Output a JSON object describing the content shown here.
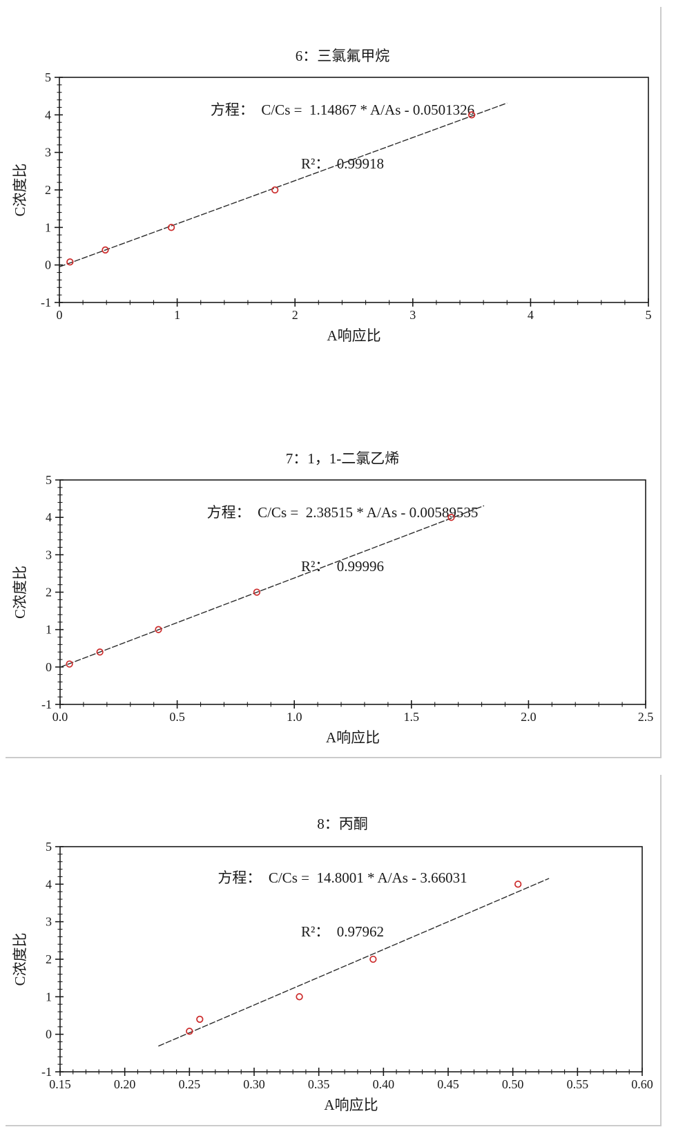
{
  "page": {
    "background": "#ffffff",
    "divider_color": "#cbcbcb"
  },
  "colors": {
    "axis": "#1a1a1a",
    "text": "#1a1a1a",
    "fit_line": "#2b2b2b",
    "point": "#cc2b2b"
  },
  "chart_data": [
    {
      "type": "scatter",
      "title": "6：三氯氟甲烷",
      "equation": "方程：  C/Cs =  1.14867 * A/As - 0.0501326",
      "r_squared_label": "R²：  0.99918",
      "slope": 1.14867,
      "intercept": -0.0501326,
      "r_squared": 0.99918,
      "xlabel": "A响应比",
      "ylabel": "C浓度比",
      "x_min": 0,
      "x_max": 5,
      "y_min": -1,
      "y_max": 5,
      "x_major_ticks": [
        0,
        1,
        2,
        3,
        4,
        5
      ],
      "x_tick_labels": [
        "0",
        "1",
        "2",
        "3",
        "4",
        "5"
      ],
      "x_minor_step": 0.2,
      "y_major_ticks": [
        -1,
        0,
        1,
        2,
        3,
        4,
        5
      ],
      "y_tick_labels": [
        "-1",
        "0",
        "1",
        "2",
        "3",
        "4",
        "5"
      ],
      "y_minor_step": 0.2,
      "grid": false,
      "legend": "none",
      "fit_x_range": [
        0.0,
        3.8
      ],
      "points": [
        [
          0.09,
          0.08
        ],
        [
          0.39,
          0.4
        ],
        [
          0.95,
          1.0
        ],
        [
          1.83,
          2.0
        ],
        [
          3.5,
          4.0
        ]
      ]
    },
    {
      "type": "scatter",
      "title": "7：1，1-二氯乙烯",
      "equation": "方程：  C/Cs =  2.38515 * A/As - 0.00589535",
      "r_squared_label": "R²：  0.99996",
      "slope": 2.38515,
      "intercept": -0.00589535,
      "r_squared": 0.99996,
      "xlabel": "A响应比",
      "ylabel": "C浓度比",
      "x_min": 0,
      "x_max": 2.5,
      "y_min": -1,
      "y_max": 5,
      "x_major_ticks": [
        0,
        0.5,
        1.0,
        1.5,
        2.0,
        2.5
      ],
      "x_tick_labels": [
        "0.0",
        "0.5",
        "1.0",
        "1.5",
        "2.0",
        "2.5"
      ],
      "x_minor_step": 0.1,
      "y_major_ticks": [
        -1,
        0,
        1,
        2,
        3,
        4,
        5
      ],
      "y_tick_labels": [
        "-1",
        "0",
        "1",
        "2",
        "3",
        "4",
        "5"
      ],
      "y_minor_step": 0.2,
      "grid": false,
      "legend": "none",
      "fit_x_range": [
        0.0,
        1.81
      ],
      "points": [
        [
          0.04,
          0.08
        ],
        [
          0.17,
          0.4
        ],
        [
          0.42,
          1.0
        ],
        [
          0.84,
          2.0
        ],
        [
          1.67,
          4.0
        ]
      ]
    },
    {
      "type": "scatter",
      "title": "8：丙酮",
      "equation": "方程：  C/Cs =  14.8001 * A/As - 3.66031",
      "r_squared_label": "R²：  0.97962",
      "slope": 14.8001,
      "intercept": -3.66031,
      "r_squared": 0.97962,
      "xlabel": "A响应比",
      "ylabel": "C浓度比",
      "x_min": 0.15,
      "x_max": 0.6,
      "y_min": -1,
      "y_max": 5,
      "x_major_ticks": [
        0.15,
        0.2,
        0.25,
        0.3,
        0.35,
        0.4,
        0.45,
        0.5,
        0.55,
        0.6
      ],
      "x_tick_labels": [
        "0.15",
        "0.20",
        "0.25",
        "0.30",
        "0.35",
        "0.40",
        "0.45",
        "0.50",
        "0.55",
        "0.60"
      ],
      "x_minor_step": 0.01,
      "y_major_ticks": [
        -1,
        0,
        1,
        2,
        3,
        4,
        5
      ],
      "y_tick_labels": [
        "-1",
        "0",
        "1",
        "2",
        "3",
        "4",
        "5"
      ],
      "y_minor_step": 0.2,
      "grid": false,
      "legend": "none",
      "fit_x_range": [
        0.226,
        0.528
      ],
      "points": [
        [
          0.25,
          0.08
        ],
        [
          0.258,
          0.4
        ],
        [
          0.335,
          1.0
        ],
        [
          0.392,
          2.0
        ],
        [
          0.504,
          4.0
        ]
      ]
    }
  ]
}
